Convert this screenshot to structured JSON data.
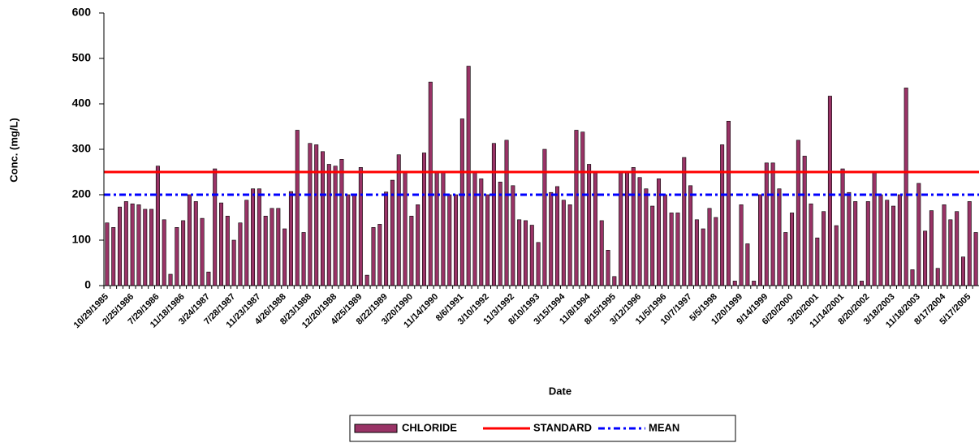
{
  "chart_data": {
    "type": "bar",
    "x_label": "Date",
    "y_label": "Conc. (mg/L)",
    "categories": [
      "10/29/1985",
      null,
      null,
      null,
      "2/25/1986",
      null,
      null,
      null,
      "7/29/1986",
      null,
      null,
      null,
      "11/18/1986",
      null,
      null,
      null,
      "3/24/1987",
      null,
      null,
      null,
      "7/28/1987",
      null,
      null,
      null,
      "11/23/1987",
      null,
      null,
      null,
      "4/26/1988",
      null,
      null,
      null,
      "8/23/1988",
      null,
      null,
      null,
      "12/20/1988",
      null,
      null,
      null,
      "4/25/1989",
      null,
      null,
      null,
      "8/22/1989",
      null,
      null,
      null,
      "3/20/1990",
      null,
      null,
      null,
      "11/14/1990",
      null,
      null,
      null,
      "8/6/1991",
      null,
      null,
      null,
      "3/10/1992",
      null,
      null,
      null,
      "11/3/1992",
      null,
      null,
      null,
      "8/10/1993",
      null,
      null,
      null,
      "3/15/1994",
      null,
      null,
      null,
      "11/8/1994",
      null,
      null,
      null,
      "8/15/1995",
      null,
      null,
      null,
      "3/12/1996",
      null,
      null,
      null,
      "11/5/1996",
      null,
      null,
      null,
      "10/7/1997",
      null,
      null,
      null,
      "5/5/1998",
      null,
      null,
      null,
      "1/20/1999",
      null,
      null,
      null,
      "9/14/1999",
      null,
      null,
      null,
      "6/20/2000",
      null,
      null,
      null,
      "3/20/2001",
      null,
      null,
      null,
      "11/14/2001",
      null,
      null,
      null,
      "8/20/2002",
      null,
      null,
      null,
      "3/18/2003",
      null,
      null,
      null,
      "11/18/2003",
      null,
      null,
      null,
      "8/17/2004",
      null,
      null,
      null,
      "5/17/2005",
      null
    ],
    "series": [
      {
        "name": "CHLORIDE",
        "color": "#993366",
        "values": [
          138,
          128,
          173,
          185,
          180,
          178,
          168,
          168,
          263,
          145,
          25,
          128,
          143,
          200,
          185,
          148,
          30,
          257,
          182,
          153,
          100,
          138,
          188,
          213,
          213,
          153,
          170,
          170,
          125,
          207,
          342,
          117,
          313,
          310,
          295,
          267,
          263,
          278,
          200,
          200,
          260,
          23,
          128,
          135,
          206,
          232,
          288,
          250,
          153,
          178,
          292,
          448,
          248,
          248,
          200,
          200,
          367,
          483,
          250,
          235,
          200,
          313,
          228,
          320,
          220,
          145,
          143,
          133,
          95,
          300,
          205,
          218,
          188,
          178,
          342,
          338,
          267,
          248,
          143,
          78,
          20,
          250,
          250,
          260,
          238,
          213,
          175,
          235,
          200,
          160,
          160,
          282,
          220,
          145,
          125,
          170,
          150,
          310,
          362,
          10,
          178,
          92,
          10,
          200,
          270,
          270,
          213,
          117,
          160,
          320,
          285,
          180,
          105,
          163,
          417,
          132,
          257,
          205,
          185,
          10,
          185,
          248,
          200,
          188,
          175,
          200,
          435,
          35,
          225,
          120,
          165,
          38,
          178,
          145,
          163,
          63,
          185,
          117
        ]
      }
    ],
    "lines": [
      {
        "name": "STANDARD",
        "value": 250,
        "color": "#ff0000",
        "dashed": false
      },
      {
        "name": "MEAN",
        "value": 200,
        "color": "#0000ff",
        "dashed": true
      }
    ],
    "ylim": [
      0,
      600
    ],
    "yticks": [
      0,
      100,
      200,
      300,
      400,
      500,
      600
    ],
    "grid": false
  }
}
